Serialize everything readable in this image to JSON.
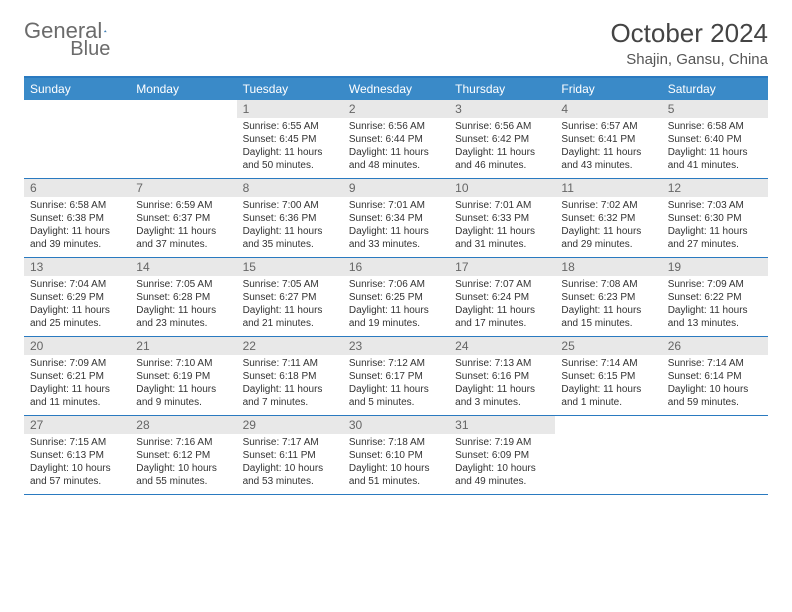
{
  "brand": {
    "name_a": "General",
    "name_b": "Blue"
  },
  "calendar": {
    "title": "October 2024",
    "location": "Shajin, Gansu, China",
    "header_color": "#3a8ac8",
    "border_color": "#2a7ac0",
    "daynum_bg": "#e8e8e8",
    "text_color": "#333333",
    "fontsize_title": 26,
    "fontsize_body": 10,
    "days_of_week": [
      "Sunday",
      "Monday",
      "Tuesday",
      "Wednesday",
      "Thursday",
      "Friday",
      "Saturday"
    ],
    "weeks": [
      [
        {
          "n": "",
          "sr": "",
          "ss": "",
          "dl": ""
        },
        {
          "n": "",
          "sr": "",
          "ss": "",
          "dl": ""
        },
        {
          "n": "1",
          "sr": "Sunrise: 6:55 AM",
          "ss": "Sunset: 6:45 PM",
          "dl": "Daylight: 11 hours and 50 minutes."
        },
        {
          "n": "2",
          "sr": "Sunrise: 6:56 AM",
          "ss": "Sunset: 6:44 PM",
          "dl": "Daylight: 11 hours and 48 minutes."
        },
        {
          "n": "3",
          "sr": "Sunrise: 6:56 AM",
          "ss": "Sunset: 6:42 PM",
          "dl": "Daylight: 11 hours and 46 minutes."
        },
        {
          "n": "4",
          "sr": "Sunrise: 6:57 AM",
          "ss": "Sunset: 6:41 PM",
          "dl": "Daylight: 11 hours and 43 minutes."
        },
        {
          "n": "5",
          "sr": "Sunrise: 6:58 AM",
          "ss": "Sunset: 6:40 PM",
          "dl": "Daylight: 11 hours and 41 minutes."
        }
      ],
      [
        {
          "n": "6",
          "sr": "Sunrise: 6:58 AM",
          "ss": "Sunset: 6:38 PM",
          "dl": "Daylight: 11 hours and 39 minutes."
        },
        {
          "n": "7",
          "sr": "Sunrise: 6:59 AM",
          "ss": "Sunset: 6:37 PM",
          "dl": "Daylight: 11 hours and 37 minutes."
        },
        {
          "n": "8",
          "sr": "Sunrise: 7:00 AM",
          "ss": "Sunset: 6:36 PM",
          "dl": "Daylight: 11 hours and 35 minutes."
        },
        {
          "n": "9",
          "sr": "Sunrise: 7:01 AM",
          "ss": "Sunset: 6:34 PM",
          "dl": "Daylight: 11 hours and 33 minutes."
        },
        {
          "n": "10",
          "sr": "Sunrise: 7:01 AM",
          "ss": "Sunset: 6:33 PM",
          "dl": "Daylight: 11 hours and 31 minutes."
        },
        {
          "n": "11",
          "sr": "Sunrise: 7:02 AM",
          "ss": "Sunset: 6:32 PM",
          "dl": "Daylight: 11 hours and 29 minutes."
        },
        {
          "n": "12",
          "sr": "Sunrise: 7:03 AM",
          "ss": "Sunset: 6:30 PM",
          "dl": "Daylight: 11 hours and 27 minutes."
        }
      ],
      [
        {
          "n": "13",
          "sr": "Sunrise: 7:04 AM",
          "ss": "Sunset: 6:29 PM",
          "dl": "Daylight: 11 hours and 25 minutes."
        },
        {
          "n": "14",
          "sr": "Sunrise: 7:05 AM",
          "ss": "Sunset: 6:28 PM",
          "dl": "Daylight: 11 hours and 23 minutes."
        },
        {
          "n": "15",
          "sr": "Sunrise: 7:05 AM",
          "ss": "Sunset: 6:27 PM",
          "dl": "Daylight: 11 hours and 21 minutes."
        },
        {
          "n": "16",
          "sr": "Sunrise: 7:06 AM",
          "ss": "Sunset: 6:25 PM",
          "dl": "Daylight: 11 hours and 19 minutes."
        },
        {
          "n": "17",
          "sr": "Sunrise: 7:07 AM",
          "ss": "Sunset: 6:24 PM",
          "dl": "Daylight: 11 hours and 17 minutes."
        },
        {
          "n": "18",
          "sr": "Sunrise: 7:08 AM",
          "ss": "Sunset: 6:23 PM",
          "dl": "Daylight: 11 hours and 15 minutes."
        },
        {
          "n": "19",
          "sr": "Sunrise: 7:09 AM",
          "ss": "Sunset: 6:22 PM",
          "dl": "Daylight: 11 hours and 13 minutes."
        }
      ],
      [
        {
          "n": "20",
          "sr": "Sunrise: 7:09 AM",
          "ss": "Sunset: 6:21 PM",
          "dl": "Daylight: 11 hours and 11 minutes."
        },
        {
          "n": "21",
          "sr": "Sunrise: 7:10 AM",
          "ss": "Sunset: 6:19 PM",
          "dl": "Daylight: 11 hours and 9 minutes."
        },
        {
          "n": "22",
          "sr": "Sunrise: 7:11 AM",
          "ss": "Sunset: 6:18 PM",
          "dl": "Daylight: 11 hours and 7 minutes."
        },
        {
          "n": "23",
          "sr": "Sunrise: 7:12 AM",
          "ss": "Sunset: 6:17 PM",
          "dl": "Daylight: 11 hours and 5 minutes."
        },
        {
          "n": "24",
          "sr": "Sunrise: 7:13 AM",
          "ss": "Sunset: 6:16 PM",
          "dl": "Daylight: 11 hours and 3 minutes."
        },
        {
          "n": "25",
          "sr": "Sunrise: 7:14 AM",
          "ss": "Sunset: 6:15 PM",
          "dl": "Daylight: 11 hours and 1 minute."
        },
        {
          "n": "26",
          "sr": "Sunrise: 7:14 AM",
          "ss": "Sunset: 6:14 PM",
          "dl": "Daylight: 10 hours and 59 minutes."
        }
      ],
      [
        {
          "n": "27",
          "sr": "Sunrise: 7:15 AM",
          "ss": "Sunset: 6:13 PM",
          "dl": "Daylight: 10 hours and 57 minutes."
        },
        {
          "n": "28",
          "sr": "Sunrise: 7:16 AM",
          "ss": "Sunset: 6:12 PM",
          "dl": "Daylight: 10 hours and 55 minutes."
        },
        {
          "n": "29",
          "sr": "Sunrise: 7:17 AM",
          "ss": "Sunset: 6:11 PM",
          "dl": "Daylight: 10 hours and 53 minutes."
        },
        {
          "n": "30",
          "sr": "Sunrise: 7:18 AM",
          "ss": "Sunset: 6:10 PM",
          "dl": "Daylight: 10 hours and 51 minutes."
        },
        {
          "n": "31",
          "sr": "Sunrise: 7:19 AM",
          "ss": "Sunset: 6:09 PM",
          "dl": "Daylight: 10 hours and 49 minutes."
        },
        {
          "n": "",
          "sr": "",
          "ss": "",
          "dl": ""
        },
        {
          "n": "",
          "sr": "",
          "ss": "",
          "dl": ""
        }
      ]
    ]
  }
}
